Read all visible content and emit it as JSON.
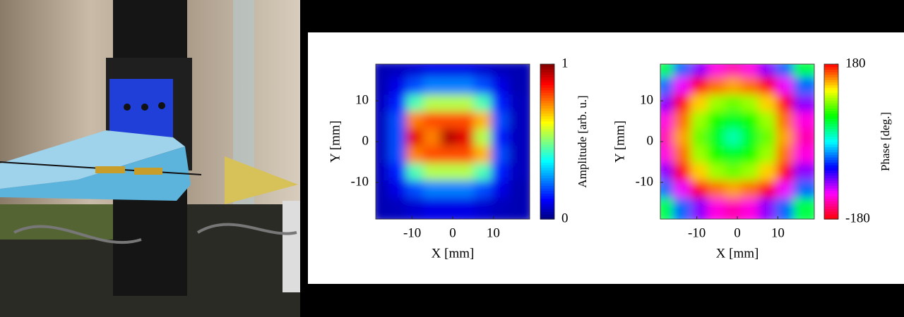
{
  "chart_data": [
    {
      "type": "heatmap",
      "xlabel": "X [mm]",
      "ylabel": "Y [mm]",
      "colorbar_label": "Amplitude [arb. u.]",
      "colormap": "jet",
      "xlim": [
        -19,
        19
      ],
      "ylim": [
        -19,
        19
      ],
      "xticks": [
        -10,
        0,
        10
      ],
      "yticks": [
        -10,
        0,
        10
      ],
      "clim": [
        0,
        1
      ],
      "cticks": [
        0,
        1
      ],
      "x": [
        -16.9,
        -12.7,
        -8.4,
        -4.2,
        0,
        4.2,
        8.4,
        12.7,
        16.9
      ],
      "y": [
        16.9,
        12.7,
        8.4,
        4.2,
        0,
        -4.2,
        -8.4,
        -12.7,
        -16.9
      ],
      "z": [
        [
          0.05,
          0.06,
          0.08,
          0.1,
          0.1,
          0.1,
          0.08,
          0.06,
          0.05
        ],
        [
          0.05,
          0.1,
          0.2,
          0.25,
          0.25,
          0.25,
          0.2,
          0.1,
          0.05
        ],
        [
          0.06,
          0.15,
          0.45,
          0.55,
          0.55,
          0.55,
          0.45,
          0.15,
          0.06
        ],
        [
          0.06,
          0.2,
          0.75,
          0.8,
          0.8,
          0.8,
          0.7,
          0.2,
          0.06
        ],
        [
          0.06,
          0.2,
          0.9,
          0.75,
          0.95,
          0.9,
          0.55,
          0.15,
          0.06
        ],
        [
          0.06,
          0.2,
          0.75,
          0.8,
          0.8,
          0.8,
          0.7,
          0.2,
          0.06
        ],
        [
          0.06,
          0.15,
          0.45,
          0.55,
          0.55,
          0.55,
          0.45,
          0.15,
          0.06
        ],
        [
          0.05,
          0.1,
          0.2,
          0.25,
          0.25,
          0.25,
          0.2,
          0.1,
          0.05
        ],
        [
          0.05,
          0.06,
          0.08,
          0.1,
          0.1,
          0.1,
          0.08,
          0.06,
          0.05
        ]
      ]
    },
    {
      "type": "heatmap",
      "xlabel": "X [mm]",
      "ylabel": "Y [mm]",
      "colorbar_label": "Phase [deg.]",
      "colormap": "hsv",
      "xlim": [
        -19,
        19
      ],
      "ylim": [
        -19,
        19
      ],
      "xticks": [
        -10,
        0,
        10
      ],
      "yticks": [
        -10,
        0,
        10
      ],
      "clim": [
        -180,
        180
      ],
      "cticks": [
        -180,
        180
      ],
      "x": [
        -16.9,
        -12.7,
        -8.4,
        -4.2,
        0,
        4.2,
        8.4,
        12.7,
        16.9
      ],
      "y": [
        16.9,
        12.7,
        8.4,
        4.2,
        0,
        -4.2,
        -8.4,
        -12.7,
        -16.9
      ],
      "z": [
        [
          43,
          -36,
          -93,
          -127,
          -138,
          -127,
          -93,
          -36,
          43
        ],
        [
          -36,
          -116,
          -172,
          154,
          142,
          154,
          -172,
          -116,
          -36
        ],
        [
          -93,
          -172,
          131,
          97,
          85,
          97,
          131,
          -172,
          -93
        ],
        [
          -127,
          154,
          97,
          63,
          51,
          63,
          97,
          154,
          -127
        ],
        [
          -138,
          142,
          85,
          51,
          20,
          51,
          85,
          142,
          -138
        ],
        [
          -127,
          154,
          97,
          63,
          51,
          63,
          97,
          154,
          -127
        ],
        [
          -93,
          -172,
          131,
          97,
          85,
          97,
          131,
          -172,
          -93
        ],
        [
          -36,
          -116,
          -172,
          154,
          142,
          154,
          -172,
          -116,
          -36
        ],
        [
          43,
          -36,
          -93,
          -127,
          -138,
          -127,
          -93,
          -36,
          43
        ]
      ]
    }
  ]
}
